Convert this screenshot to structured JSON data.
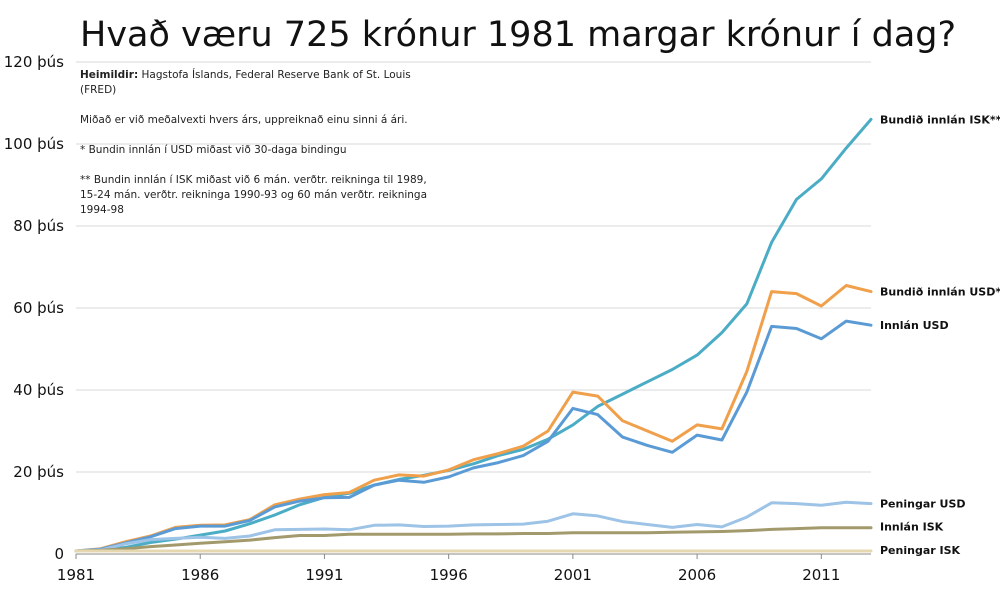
{
  "chart_data": {
    "type": "line",
    "title": "Hvað væru 725 krónur 1981 margar krónur í dag?",
    "x": [
      1981,
      1982,
      1983,
      1984,
      1985,
      1986,
      1987,
      1988,
      1989,
      1990,
      1991,
      1992,
      1993,
      1994,
      1995,
      1996,
      1997,
      1998,
      1999,
      2000,
      2001,
      2002,
      2003,
      2004,
      2005,
      2006,
      2007,
      2008,
      2009,
      2010,
      2011,
      2012,
      2013
    ],
    "xlim": [
      1981,
      2013
    ],
    "ylim": [
      0,
      120000
    ],
    "xticks": [
      1981,
      1986,
      1991,
      1996,
      2001,
      2006,
      2011
    ],
    "xtick_labels": [
      "1981",
      "1986",
      "1991",
      "1996",
      "2001",
      "2006",
      "2011"
    ],
    "yticks": [
      0,
      20000,
      40000,
      60000,
      80000,
      100000,
      120000
    ],
    "ytick_labels": [
      "0",
      "20 þús",
      "40 þús",
      "60 þús",
      "80 þús",
      "100 þús",
      "120 þús"
    ],
    "grid": "horizontal",
    "series": [
      {
        "name": "Bundið innlán ISK**",
        "color": "#4bacc6",
        "values": [
          725,
          900,
          1600,
          2800,
          3600,
          4600,
          5600,
          7400,
          9500,
          12000,
          13800,
          14800,
          16800,
          18200,
          19200,
          20400,
          22000,
          24000,
          25500,
          28000,
          31500,
          36000,
          39000,
          42000,
          45000,
          48500,
          54000,
          61000,
          76000,
          86500,
          91500,
          99000,
          106000
        ]
      },
      {
        "name": "Bundið innlán USD*",
        "color": "#f0a04b",
        "values": [
          725,
          1300,
          3000,
          4400,
          6500,
          7000,
          7100,
          8400,
          12000,
          13400,
          14500,
          15000,
          18000,
          19300,
          19000,
          20500,
          23000,
          24500,
          26300,
          30000,
          39500,
          38500,
          32500,
          30000,
          27500,
          31500,
          30500,
          44500,
          64000,
          63500,
          60500,
          65500,
          64000
        ]
      },
      {
        "name": "Innlán USD",
        "color": "#5b9bd5",
        "values": [
          725,
          1200,
          2700,
          4200,
          6200,
          6800,
          6800,
          8200,
          11500,
          12900,
          13700,
          13800,
          16800,
          18000,
          17500,
          18800,
          21000,
          22300,
          24000,
          27500,
          35500,
          34000,
          28500,
          26500,
          24800,
          29000,
          27800,
          39500,
          55500,
          55000,
          52500,
          56800,
          55800
        ]
      },
      {
        "name": "Peningar USD",
        "color": "#9dc3e6",
        "values": [
          725,
          1000,
          2500,
          3500,
          3800,
          4100,
          3800,
          4400,
          5900,
          6000,
          6100,
          5900,
          7000,
          7100,
          6700,
          6800,
          7100,
          7200,
          7300,
          8000,
          9800,
          9300,
          7900,
          7200,
          6500,
          7200,
          6600,
          9000,
          12500,
          12300,
          11900,
          12600,
          12300
        ]
      },
      {
        "name": "Innlán ISK",
        "color": "#a29a6c",
        "values": [
          725,
          900,
          1300,
          1800,
          2200,
          2600,
          3000,
          3400,
          4000,
          4500,
          4500,
          4800,
          4800,
          4800,
          4800,
          4800,
          4900,
          4900,
          5000,
          5000,
          5200,
          5200,
          5200,
          5200,
          5300,
          5400,
          5500,
          5700,
          6000,
          6200,
          6400,
          6400,
          6400
        ]
      },
      {
        "name": "Peningar ISK",
        "color": "#e5d8b0",
        "values": [
          725,
          725,
          725,
          725,
          725,
          725,
          725,
          725,
          725,
          725,
          725,
          725,
          725,
          725,
          725,
          725,
          725,
          725,
          725,
          725,
          725,
          725,
          725,
          725,
          725,
          725,
          725,
          725,
          725,
          725,
          725,
          725,
          725
        ]
      }
    ],
    "annotations": [
      "Heimildir: Hagstofa Íslands, Federal Reserve Bank of St. Louis (FRED)",
      "Miðað er við meðalvexti hvers árs, uppreiknað einu sinni á ári.",
      "* Bundin innlán í USD miðast við 30-daga bindingu",
      "** Bundin innlán í ISK miðast við 6 mán. verðtr. reikninga til 1989, 15-24 mán. verðtr. reikninga 1990-93 og 60 mán verðtr. reikninga 1994-98"
    ]
  },
  "notes": {
    "source_label": "Heimildir:",
    "source_text": "Hagstofa Íslands, Federal Reserve Bank of St. Louis (FRED)",
    "method": "Miðað er við meðalvexti hvers árs, uppreiknað einu sinni á ári.",
    "footnote1": "* Bundin innlán í USD miðast við 30-daga bindingu",
    "footnote2": "** Bundin innlán í ISK miðast við 6 mán. verðtr. reikninga til 1989, 15-24 mán. verðtr. reikninga 1990-93 og 60 mán verðtr. reikninga 1994-98"
  }
}
